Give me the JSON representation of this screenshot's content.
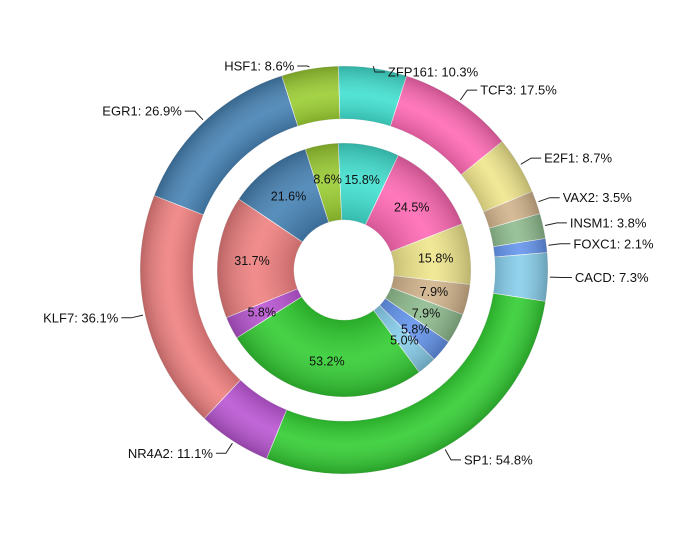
{
  "chart_data": {
    "type": "pie",
    "variant": "nested-donut",
    "outer": {
      "slices": [
        {
          "label": "HSF1",
          "value": 8.6,
          "color": "#9acd32"
        },
        {
          "label": "ZFP161",
          "value": 10.3,
          "color": "#40e0d0"
        },
        {
          "label": "TCF3",
          "value": 17.5,
          "color": "#ff69b4"
        },
        {
          "label": "E2F1",
          "value": 8.7,
          "color": "#f0e68c"
        },
        {
          "label": "VAX2",
          "value": 3.5,
          "color": "#d2b48c"
        },
        {
          "label": "INSM1",
          "value": 3.8,
          "color": "#8fbc8f"
        },
        {
          "label": "FOXC1",
          "value": 2.1,
          "color": "#6495ed"
        },
        {
          "label": "CACD",
          "value": 7.3,
          "color": "#87ceeb"
        },
        {
          "label": "SP1",
          "value": 54.8,
          "color": "#32cd32"
        },
        {
          "label": "NR4A2",
          "value": 11.1,
          "color": "#ba55d3"
        },
        {
          "label": "KLF7",
          "value": 36.1,
          "color": "#f08080"
        },
        {
          "label": "EGR1",
          "value": 26.9,
          "color": "#4682b4"
        }
      ]
    },
    "inner": {
      "slices": [
        {
          "value": 8.6,
          "label_text": "8.6%",
          "color": "#9acd32"
        },
        {
          "value": 15.8,
          "label_text": "15.8%",
          "color": "#40e0d0"
        },
        {
          "value": 24.5,
          "label_text": "24.5%",
          "color": "#ff69b4"
        },
        {
          "value": 15.8,
          "label_text": "15.8%",
          "color": "#f0e68c"
        },
        {
          "value": 7.9,
          "label_text": "7.9%",
          "color": "#d2b48c"
        },
        {
          "value": 7.9,
          "label_text": "7.9%",
          "color": "#8fbc8f"
        },
        {
          "value": 5.8,
          "label_text": "5.8%",
          "color": "#6495ed"
        },
        {
          "value": 5.0,
          "label_text": "5.0%",
          "color": "#87ceeb"
        },
        {
          "value": 53.2,
          "label_text": "53.2%",
          "color": "#32cd32"
        },
        {
          "value": 5.8,
          "label_text": "5.8%",
          "color": "#ba55d3"
        },
        {
          "value": 31.7,
          "label_text": "31.7%",
          "color": "#f08080"
        },
        {
          "value": 21.6,
          "label_text": "21.6%",
          "color": "#4682b4"
        }
      ]
    },
    "label_separator": ": ",
    "value_suffix": "%",
    "legend": "none",
    "title": ""
  }
}
